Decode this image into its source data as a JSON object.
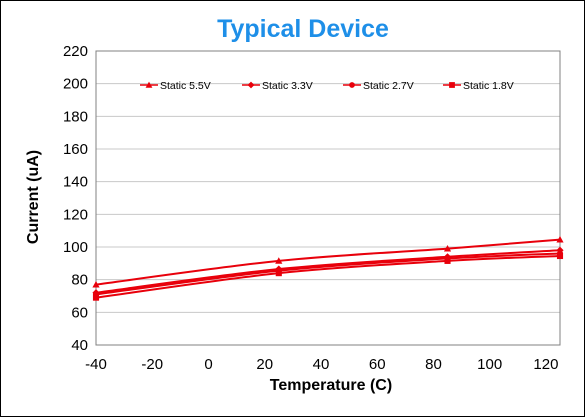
{
  "chart_data": {
    "type": "line",
    "title": "Typical Device",
    "xlabel": "Temperature (C)",
    "ylabel": "Current (uA)",
    "xlim": [
      -40,
      125
    ],
    "ylim": [
      40,
      220
    ],
    "xticks": [
      "-40",
      "-20",
      "0",
      "20",
      "40",
      "60",
      "80",
      "100",
      "120"
    ],
    "yticks": [
      "40",
      "60",
      "80",
      "100",
      "120",
      "140",
      "160",
      "180",
      "200",
      "220"
    ],
    "x": [
      -40,
      25,
      85,
      125
    ],
    "series": [
      {
        "name": "Static 5.5V",
        "marker": "triangle",
        "values": [
          77,
          91.5,
          99,
          104.5
        ]
      },
      {
        "name": "Static 3.3V",
        "marker": "diamond",
        "values": [
          72,
          86.5,
          94,
          98
        ]
      },
      {
        "name": "Static 2.7V",
        "marker": "circle",
        "values": [
          71,
          85.5,
          93,
          96
        ]
      },
      {
        "name": "Static 1.8V",
        "marker": "square",
        "values": [
          69,
          84,
          91.5,
          94.5
        ]
      }
    ],
    "grid": {
      "horizontal": true,
      "vertical": false
    },
    "legend_position": "top-inside",
    "colors": {
      "series": "#e8000b",
      "title": "#1e8fe8",
      "grid": "#c8c8c8",
      "axis": "#808080"
    }
  }
}
